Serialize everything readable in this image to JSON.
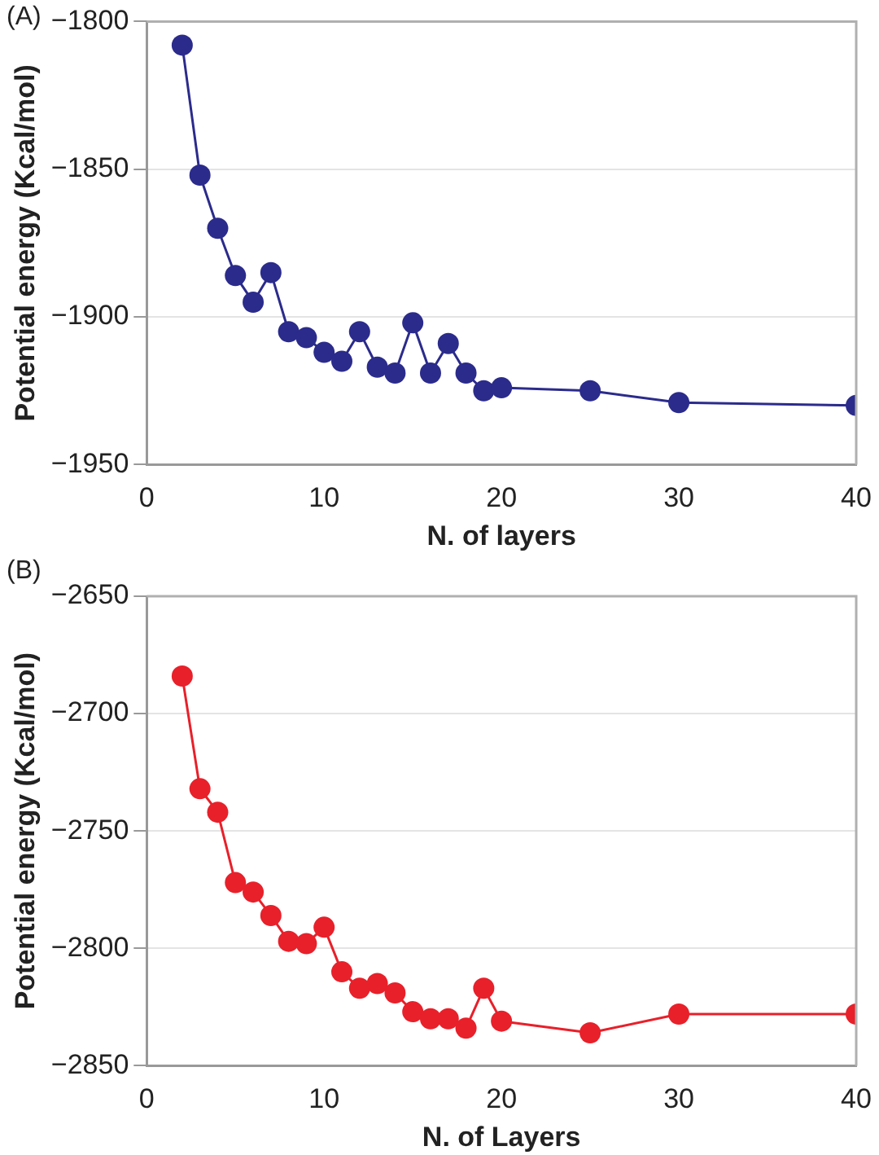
{
  "chart_data": [
    {
      "type": "line",
      "annotations": [
        "(A)"
      ],
      "xlabel": "N. of layers",
      "ylabel": "Potential energy (Kcal/mol)",
      "x": [
        2,
        3,
        4,
        5,
        6,
        7,
        8,
        9,
        10,
        11,
        12,
        13,
        14,
        15,
        16,
        17,
        18,
        19,
        20,
        25,
        30,
        40
      ],
      "series": [
        {
          "color": "#2b2b8c",
          "values": [
            -1808,
            -1852,
            -1870,
            -1886,
            -1895,
            -1885,
            -1905,
            -1907,
            -1912,
            -1915,
            -1905,
            -1917,
            -1919,
            -1902,
            -1919,
            -1909,
            -1919,
            -1925,
            -1924,
            -1925,
            -1929,
            -1930
          ]
        }
      ],
      "xlim": [
        0,
        40
      ],
      "xticks": [
        0,
        10,
        20,
        30,
        40
      ],
      "ylim": [
        -1950,
        -1800
      ],
      "yticks": [
        -1950,
        -1900,
        -1850,
        -1800
      ],
      "grid": "y",
      "marker": "circle",
      "line_style": "solid"
    },
    {
      "type": "line",
      "annotations": [
        "(B)"
      ],
      "xlabel": "N. of Layers",
      "ylabel": "Potential energy (Kcal/mol)",
      "x": [
        2,
        3,
        4,
        5,
        6,
        7,
        8,
        9,
        10,
        11,
        12,
        13,
        14,
        15,
        16,
        17,
        18,
        19,
        20,
        25,
        30,
        40
      ],
      "series": [
        {
          "color": "#e8202a",
          "values": [
            -2684,
            -2732,
            -2742,
            -2772,
            -2776,
            -2786,
            -2797,
            -2798,
            -2791,
            -2810,
            -2817,
            -2815,
            -2819,
            -2827,
            -2830,
            -2830,
            -2834,
            -2817,
            -2831,
            -2836,
            -2828,
            -2828
          ]
        }
      ],
      "xlim": [
        0,
        40
      ],
      "xticks": [
        0,
        10,
        20,
        30,
        40
      ],
      "ylim": [
        -2850,
        -2650
      ],
      "yticks": [
        -2850,
        -2800,
        -2750,
        -2700,
        -2650
      ],
      "grid": "y",
      "marker": "circle",
      "line_style": "solid"
    }
  ]
}
